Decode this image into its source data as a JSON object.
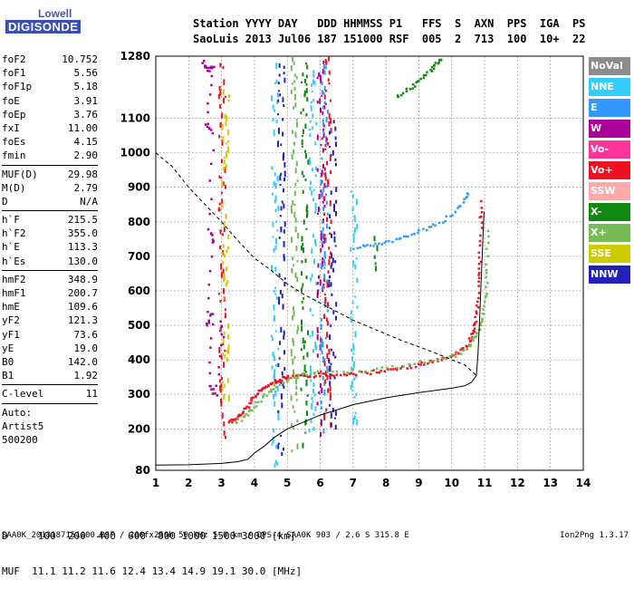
{
  "logo": {
    "line1": "Lowell",
    "line2": "DIGISONDE"
  },
  "header": {
    "line1": "Station YYYY DAY   DDD HHMMSS P1   FFS  S  AXN  PPS  IGA  PS",
    "line2": "SaoLuis 2013 Jul06 187 151000 RSF  005  2  713  100  10+  22"
  },
  "params": {
    "group1": [
      {
        "name": "foF2",
        "value": "10.752"
      },
      {
        "name": "foF1",
        "value": "5.56"
      },
      {
        "name": "foF1p",
        "value": "5.18"
      },
      {
        "name": "foE",
        "value": "3.91"
      },
      {
        "name": "foEp",
        "value": "3.76"
      },
      {
        "name": "fxI",
        "value": "11.00"
      },
      {
        "name": "foEs",
        "value": "4.15"
      },
      {
        "name": "fmin",
        "value": "2.90"
      }
    ],
    "group2": [
      {
        "name": "MUF(D)",
        "value": "29.98"
      },
      {
        "name": "M(D)",
        "value": "2.79"
      },
      {
        "name": "D",
        "value": "N/A"
      }
    ],
    "group3": [
      {
        "name": "h`F",
        "value": "215.5"
      },
      {
        "name": "h`F2",
        "value": "355.0"
      },
      {
        "name": "h`E",
        "value": "113.3"
      },
      {
        "name": "h`Es",
        "value": "130.0"
      }
    ],
    "group4": [
      {
        "name": "hmF2",
        "value": "348.9"
      },
      {
        "name": "hmF1",
        "value": "200.7"
      },
      {
        "name": "hmE",
        "value": "109.6"
      },
      {
        "name": "yF2",
        "value": "121.3"
      },
      {
        "name": "yF1",
        "value": "73.6"
      },
      {
        "name": "yE",
        "value": "19.0"
      },
      {
        "name": "B0",
        "value": "142.0"
      },
      {
        "name": "B1",
        "value": "1.92"
      }
    ],
    "group5": [
      {
        "name": "C-level",
        "value": "11"
      }
    ],
    "auto": [
      "Auto:",
      "Artist5",
      "500200"
    ]
  },
  "legend": [
    {
      "label": "NoVal",
      "color": "#8c8c8c"
    },
    {
      "label": "NNE",
      "color": "#33ccff"
    },
    {
      "label": "E",
      "color": "#3399ff"
    },
    {
      "label": "W",
      "color": "#aa0099"
    },
    {
      "label": "Vo-",
      "color": "#ff3399"
    },
    {
      "label": "Vo+",
      "color": "#ee1122"
    },
    {
      "label": "SSW",
      "color": "#ffaaaa"
    },
    {
      "label": "X-",
      "color": "#118811"
    },
    {
      "label": "X+",
      "color": "#77bb55"
    },
    {
      "label": "SSE",
      "color": "#cccc00"
    },
    {
      "label": "NNW",
      "color": "#2222bb"
    }
  ],
  "muf_table": {
    "dist_line": "D     100  200  400  600  800 1000 1500 3000 [km]",
    "muf_line": "MUF  11.1 11.2 11.6 12.4 13.4 14.9 19.1 30.0 [MHz]"
  },
  "footer": "SAA0K_2013187151000.RSF / 260fx256h 50 kHz 5.0 km / DPS-4 SAA0K 903 / 2.6 S 315.8 E",
  "version": "Ion2Png 1.3.17",
  "chart_data": {
    "type": "scatter",
    "xlim": [
      1,
      14
    ],
    "ylim": [
      80,
      1280
    ],
    "y_ticks": [
      80,
      200,
      300,
      400,
      500,
      600,
      700,
      800,
      900,
      1000,
      1100,
      1280
    ],
    "x_ticks": [
      1,
      2,
      3,
      4,
      5,
      6,
      7,
      8,
      9,
      10,
      11,
      12,
      13,
      14
    ],
    "grid": true,
    "series": [
      {
        "color": "#ee1122",
        "points": [
          [
            3.2,
            225
          ],
          [
            3.4,
            232
          ],
          [
            3.6,
            248
          ],
          [
            3.8,
            275
          ],
          [
            4.0,
            300
          ],
          [
            4.2,
            318
          ],
          [
            4.4,
            330
          ],
          [
            4.6,
            340
          ],
          [
            4.8,
            348
          ],
          [
            5.0,
            352
          ],
          [
            5.5,
            356
          ],
          [
            6,
            360
          ],
          [
            6.5,
            362
          ],
          [
            7,
            364
          ],
          [
            7.5,
            367
          ],
          [
            8,
            372
          ],
          [
            8.5,
            380
          ],
          [
            9,
            390
          ],
          [
            9.5,
            400
          ],
          [
            10,
            415
          ],
          [
            10.3,
            432
          ],
          [
            10.5,
            455
          ],
          [
            10.6,
            480
          ],
          [
            10.7,
            510
          ],
          [
            10.75,
            560
          ],
          [
            10.8,
            640
          ],
          [
            10.82,
            700
          ],
          [
            10.85,
            800
          ],
          [
            10.88,
            870
          ]
        ]
      },
      {
        "color": "#77bb55",
        "points": [
          [
            3.4,
            220
          ],
          [
            3.7,
            240
          ],
          [
            4.0,
            270
          ],
          [
            4.3,
            300
          ],
          [
            4.6,
            325
          ],
          [
            5.0,
            345
          ],
          [
            5.5,
            360
          ],
          [
            6,
            368
          ],
          [
            7,
            372
          ],
          [
            8,
            378
          ],
          [
            9,
            395
          ],
          [
            9.8,
            410
          ],
          [
            10.2,
            420
          ],
          [
            10.5,
            440
          ],
          [
            10.7,
            470
          ],
          [
            10.85,
            500
          ],
          [
            10.95,
            540
          ],
          [
            11.0,
            600
          ],
          [
            11.05,
            680
          ],
          [
            11.1,
            800
          ]
        ]
      },
      {
        "color": "#3399ff",
        "points": [
          [
            7.0,
            725
          ],
          [
            7.5,
            735
          ],
          [
            8,
            745
          ],
          [
            8.5,
            760
          ],
          [
            9,
            775
          ],
          [
            9.5,
            795
          ],
          [
            10,
            825
          ],
          [
            10.3,
            860
          ],
          [
            10.5,
            895
          ]
        ]
      },
      {
        "color": "#118811",
        "points": [
          [
            8.3,
            1160
          ],
          [
            8.7,
            1190
          ],
          [
            9.0,
            1210
          ],
          [
            9.3,
            1240
          ],
          [
            9.5,
            1260
          ],
          [
            9.7,
            1280
          ]
        ]
      },
      {
        "color": "#aa0099",
        "points": [
          [
            2.4,
            1270
          ],
          [
            2.55,
            1240
          ],
          [
            2.7,
            1255
          ],
          [
            2.5,
            1090
          ],
          [
            2.7,
            1060
          ],
          [
            2.6,
            780
          ],
          [
            2.7,
            740
          ],
          [
            2.5,
            500
          ],
          [
            2.7,
            540
          ],
          [
            2.6,
            330
          ],
          [
            2.8,
            300
          ],
          [
            3.0,
            470
          ],
          [
            2.9,
            520
          ]
        ]
      }
    ],
    "vertical_traces": [
      {
        "x": 3.0,
        "color": "#ee1122",
        "ymin": 180,
        "ymax": 1280
      },
      {
        "x": 3.1,
        "color": "#cccc00",
        "ymin": 220,
        "ymax": 1200
      },
      {
        "x": 4.6,
        "color": "#33ccff",
        "ymin": 100,
        "ymax": 1280
      },
      {
        "x": 4.8,
        "color": "#2222bb",
        "ymin": 120,
        "ymax": 1280
      },
      {
        "x": 5.2,
        "color": "#77bb55",
        "ymin": 140,
        "ymax": 1280
      },
      {
        "x": 5.5,
        "color": "#118811",
        "ymin": 160,
        "ymax": 1280
      },
      {
        "x": 5.75,
        "color": "#33ccff",
        "ymin": 200,
        "ymax": 1280
      },
      {
        "x": 6.0,
        "color": "#aa0099",
        "ymin": 180,
        "ymax": 1280
      },
      {
        "x": 6.1,
        "color": "#3399ff",
        "ymin": 200,
        "ymax": 1280
      },
      {
        "x": 6.2,
        "color": "#ee1122",
        "ymin": 220,
        "ymax": 1280
      },
      {
        "x": 6.35,
        "color": "#2222bb",
        "ymin": 200,
        "ymax": 1100
      },
      {
        "x": 7.0,
        "color": "#33ccff",
        "ymin": 220,
        "ymax": 900
      },
      {
        "x": 7.6,
        "color": "#118811",
        "ymin": 650,
        "ymax": 760
      }
    ],
    "profile_curve": [
      [
        1,
        95
      ],
      [
        2,
        96
      ],
      [
        3,
        100
      ],
      [
        3.5,
        105
      ],
      [
        3.8,
        112
      ],
      [
        4.0,
        130
      ],
      [
        4.3,
        150
      ],
      [
        4.6,
        175
      ],
      [
        5.0,
        200
      ],
      [
        5.5,
        220
      ],
      [
        6.0,
        240
      ],
      [
        6.5,
        255
      ],
      [
        7,
        270
      ],
      [
        8,
        290
      ],
      [
        9,
        305
      ],
      [
        10,
        318
      ],
      [
        10.4,
        325
      ],
      [
        10.6,
        335
      ],
      [
        10.75,
        355
      ]
    ],
    "profile_top": [
      [
        10.75,
        355
      ],
      [
        10.8,
        420
      ],
      [
        10.85,
        520
      ],
      [
        10.9,
        640
      ],
      [
        10.95,
        760
      ],
      [
        10.98,
        830
      ]
    ],
    "muf_curve": [
      [
        1.0,
        1000
      ],
      [
        1.5,
        960
      ],
      [
        2.0,
        900
      ],
      [
        2.5,
        850
      ],
      [
        3.0,
        800
      ],
      [
        3.5,
        745
      ],
      [
        4.0,
        695
      ],
      [
        4.5,
        660
      ],
      [
        5.0,
        620
      ],
      [
        5.5,
        590
      ],
      [
        6.0,
        565
      ],
      [
        6.5,
        540
      ],
      [
        7.0,
        515
      ],
      [
        7.5,
        495
      ],
      [
        8.0,
        475
      ],
      [
        8.5,
        455
      ],
      [
        9.0,
        438
      ],
      [
        9.5,
        420
      ],
      [
        10.0,
        400
      ],
      [
        10.4,
        385
      ],
      [
        10.75,
        355
      ]
    ]
  }
}
